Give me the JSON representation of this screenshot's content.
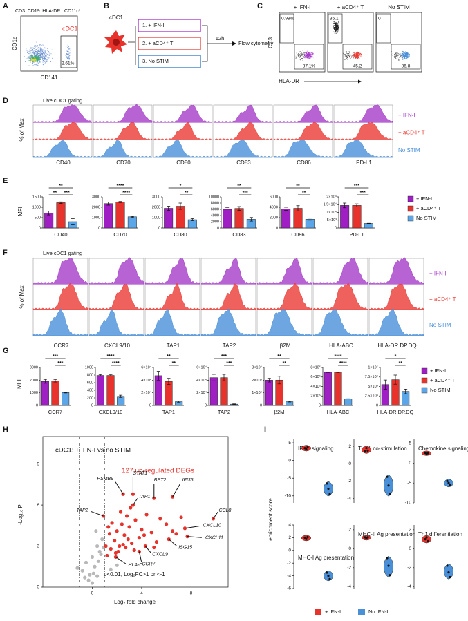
{
  "panel_labels": [
    "A",
    "B",
    "C",
    "D",
    "E",
    "F",
    "G",
    "H",
    "I"
  ],
  "a": {
    "title": "CD3⁻CD19⁻HLA-DR⁺ CD11c⁺",
    "gate": "cDC1",
    "percent": "2.61%",
    "y_label": "CD1c",
    "x_label": "CD141"
  },
  "b": {
    "cell": "cDC1",
    "conditions": [
      "1. + IFN-I",
      "2. + aCD4⁺ T",
      "3. No STIM"
    ],
    "time": "12h",
    "readout": "Flow cytometry"
  },
  "c": {
    "y_label": "CD3",
    "x_label": "HLA-DR",
    "plots": [
      {
        "title": "+ IFN-I",
        "upper": "0.98%",
        "lower": "87.1%"
      },
      {
        "title": "+ aCD4⁺ T",
        "upper": "35.1",
        "lower": "45.2"
      },
      {
        "title": "No STIM",
        "upper": "0",
        "lower": "86.8"
      }
    ]
  },
  "d": {
    "title": "Live cDC1 gating",
    "y_label": "% of Max",
    "markers": [
      "CD40",
      "CD70",
      "CD80",
      "CD83",
      "CD86",
      "PD-L1"
    ],
    "legend": [
      {
        "name": "+ IFN-I",
        "color": "#a53cc8"
      },
      {
        "name": "+ aCD4⁺ T",
        "color": "#ea3a34"
      },
      {
        "name": "No STIM",
        "color": "#4a90d9"
      }
    ]
  },
  "e": {
    "y_label": "MFI",
    "legend": [
      {
        "name": "+ IFN-I",
        "color": "#a01fc4"
      },
      {
        "name": "+ aCD4⁺ T",
        "color": "#e8322c"
      },
      {
        "name": "No STIM",
        "color": "#5aa6e8"
      }
    ],
    "charts": [
      {
        "category": "CD40",
        "ylim": [
          0,
          1500
        ],
        "yticks": [
          0,
          500,
          1000,
          1500
        ],
        "values": [
          720,
          1220,
          300
        ],
        "errors": [
          90,
          40,
          150
        ],
        "sig_1_2": "**",
        "sig_2_3": "***",
        "sig_1_3": "**"
      },
      {
        "category": "CD70",
        "ylim": [
          0,
          3000
        ],
        "yticks": [
          0,
          1000,
          2000,
          3000
        ],
        "values": [
          2350,
          2500,
          1080
        ],
        "errors": [
          150,
          50,
          50
        ],
        "sig_2_3": "****",
        "sig_1_3": "****"
      },
      {
        "category": "CD80",
        "ylim": [
          0,
          3000
        ],
        "yticks": [
          0,
          1000,
          2000,
          3000
        ],
        "values": [
          1900,
          2100,
          800
        ],
        "errors": [
          200,
          300,
          100
        ],
        "sig_2_3": "**",
        "sig_1_3": "*"
      },
      {
        "category": "CD83",
        "ylim": [
          0,
          10000
        ],
        "yticks": [
          0,
          2000,
          4000,
          6000,
          8000,
          10000
        ],
        "values": [
          6000,
          6300,
          2800
        ],
        "errors": [
          600,
          600,
          600
        ],
        "sig_2_3": "***",
        "sig_1_3": "**"
      },
      {
        "category": "CD86",
        "ylim": [
          0,
          6000
        ],
        "yticks": [
          0,
          2000,
          4000,
          6000
        ],
        "values": [
          3700,
          3800,
          1700
        ],
        "errors": [
          300,
          500,
          200
        ],
        "sig_2_3": "**",
        "sig_1_3": "**"
      },
      {
        "category": "PD-L1",
        "ylim": [
          0,
          20000
        ],
        "yticks": [
          0,
          {
            "value": 5000,
            "label": "5×10³"
          },
          {
            "value": 10000,
            "label": "1×10⁴"
          },
          {
            "value": 15000,
            "label": "1.5×10⁴"
          },
          {
            "value": 20000,
            "label": "2×10⁴"
          }
        ],
        "values": [
          14500,
          14500,
          2900
        ],
        "errors": [
          1500,
          1000,
          100
        ],
        "sig_2_3": "***",
        "sig_1_3": "***"
      }
    ]
  },
  "f": {
    "title": "Live cDC1 gating",
    "y_label": "% of Max",
    "markers": [
      "CCR7",
      "CXCL9/10",
      "TAP1",
      "TAP2",
      "β2M",
      "HLA-ABC",
      "HLA-DR.DP.DQ"
    ],
    "legend": [
      {
        "name": "+ IFN-I",
        "color": "#a53cc8"
      },
      {
        "name": "+ aCD4⁺ T",
        "color": "#ea3a34"
      },
      {
        "name": "No STIM",
        "color": "#4a90d9"
      }
    ]
  },
  "g": {
    "y_label": "MFI",
    "legend": [
      {
        "name": "+ IFN-I",
        "color": "#a01fc4"
      },
      {
        "name": "+ aCD4⁺ T",
        "color": "#e8322c"
      },
      {
        "name": "No STIM",
        "color": "#5aa6e8"
      }
    ],
    "charts": [
      {
        "category": "CCR7",
        "ylim": [
          0,
          3000
        ],
        "yticks": [
          0,
          1000,
          2000,
          3000
        ],
        "values": [
          1900,
          1950,
          1020
        ],
        "errors": [
          150,
          100,
          30
        ],
        "sig_2_3": "***",
        "sig_1_3": "***"
      },
      {
        "category": "CXCL9/10",
        "ylim": [
          0,
          1000
        ],
        "yticks": [
          0,
          200,
          400,
          600,
          800,
          1000
        ],
        "values": [
          790,
          790,
          240
        ],
        "errors": [
          20,
          20,
          30
        ],
        "sig_2_3": "****",
        "sig_1_3": "****"
      },
      {
        "category": "TAP1",
        "ylim": [
          0,
          60000
        ],
        "yticks": [
          0,
          {
            "value": 20000,
            "label": "2×10⁴"
          },
          {
            "value": 40000,
            "label": "4×10⁴"
          },
          {
            "value": 60000,
            "label": "6×10⁴"
          }
        ],
        "values": [
          47000,
          38000,
          6000
        ],
        "errors": [
          7000,
          5000,
          1000
        ],
        "sig_2_3": "**",
        "sig_1_3": "**"
      },
      {
        "category": "TAP2",
        "ylim": [
          0,
          60000
        ],
        "yticks": [
          0,
          {
            "value": 20000,
            "label": "2×10⁴"
          },
          {
            "value": 40000,
            "label": "4×10⁴"
          },
          {
            "value": 60000,
            "label": "6×10⁴"
          }
        ],
        "values": [
          44000,
          44000,
          2000
        ],
        "errors": [
          5000,
          5000,
          500
        ],
        "sig_2_3": "***",
        "sig_1_3": "***"
      },
      {
        "category": "β2M",
        "ylim": [
          0,
          30000
        ],
        "yticks": [
          0,
          {
            "value": 10000,
            "label": "1×10⁴"
          },
          {
            "value": 20000,
            "label": "2×10⁴"
          },
          {
            "value": 30000,
            "label": "3×10⁴"
          }
        ],
        "values": [
          20000,
          20000,
          3000
        ],
        "errors": [
          1500,
          3000,
          300
        ],
        "sig_2_3": "**",
        "sig_1_3": "**"
      },
      {
        "category": "HLA-ABC",
        "ylim": [
          0,
          800000
        ],
        "yticks": [
          0,
          {
            "value": 200000,
            "label": "2×10⁵"
          },
          {
            "value": 400000,
            "label": "4×10⁵"
          },
          {
            "value": 600000,
            "label": "6×10⁵"
          },
          {
            "value": 800000,
            "label": "8×10⁵"
          }
        ],
        "values": [
          700000,
          700000,
          140000
        ],
        "errors": [
          5000,
          8000,
          3000
        ],
        "sig_2_3": "****",
        "sig_1_3": "****"
      },
      {
        "category": "HLA-DR.DP.DQ",
        "ylim": [
          0,
          100000
        ],
        "yticks": [
          0,
          {
            "value": 25000,
            "label": "2.5×10⁴"
          },
          {
            "value": 50000,
            "label": "5×10⁴"
          },
          {
            "value": 75000,
            "label": "7.5×10⁴"
          },
          {
            "value": 100000,
            "label": "1×10⁵"
          }
        ],
        "values": [
          55000,
          68000,
          37000
        ],
        "errors": [
          12000,
          12000,
          6000
        ],
        "sig_2_3": "**",
        "sig_1_3": "*"
      }
    ]
  },
  "h": {
    "title": "cDC1: + IFN-I vs no STIM",
    "deg_label": "127 up-regulated DEGs",
    "x_label": "Log₂ fold change",
    "y_label": "-Log₁₀ P",
    "note": "p<0.01, Log₂FC>1 or <-1",
    "xlim": [
      -4,
      11
    ],
    "xticks": [
      0,
      4,
      8
    ],
    "ylim": [
      0,
      11
    ],
    "yticks": [
      0,
      3,
      6,
      9
    ],
    "fc_cutoffs": [
      -1,
      1
    ],
    "p_cutoff": 2,
    "up_color": "#e8322c",
    "other_color": "#b8b8b8",
    "up_x": [
      1.2,
      1.5,
      1.8,
      2.0,
      2.2,
      2.4,
      2.6,
      2.8,
      3.0,
      3.2,
      1.4,
      1.9,
      2.3,
      2.7,
      3.5,
      3.8,
      4.0,
      4.4,
      4.8,
      5.2,
      5.5,
      6.0,
      6.8,
      7.2,
      1.1,
      1.6,
      2.1,
      2.9,
      3.4,
      4.2,
      5.0,
      1.3,
      2.5,
      3.1,
      6.5
    ],
    "up_y": [
      2.3,
      2.8,
      3.4,
      4.1,
      3.0,
      4.6,
      3.8,
      5.2,
      4.4,
      3.2,
      3.9,
      2.5,
      5.5,
      2.9,
      4.9,
      3.6,
      4.2,
      5.3,
      4.0,
      3.3,
      5.0,
      4.6,
      3.9,
      5.1,
      3.0,
      4.7,
      2.6,
      3.5,
      2.7,
      3.8,
      2.9,
      4.4,
      3.1,
      5.8,
      4.1
    ],
    "other_x": [
      -0.8,
      -0.5,
      -0.3,
      0,
      0.2,
      0.4,
      0.6,
      0.8,
      -0.2,
      0.1,
      0.5,
      0.9,
      -0.6,
      0.3,
      0.7,
      1.5,
      2.0,
      -1.2,
      0.0,
      0.4
    ],
    "other_y": [
      1.2,
      1.8,
      0.5,
      2.2,
      1.5,
      3.0,
      2.6,
      3.5,
      0.9,
      1.0,
      1.9,
      2.9,
      0.7,
      4.1,
      2.4,
      1.3,
      1.6,
      1.4,
      0.3,
      0.8
    ],
    "genes": [
      {
        "name": "TAP2",
        "x": 0.9,
        "y": 5.2
      },
      {
        "name": "PSMB9",
        "x": 2.5,
        "y": 6.8
      },
      {
        "name": "STAT1",
        "x": 3.3,
        "y": 6.8
      },
      {
        "name": "TAP1",
        "x": 3.3,
        "y": 6.0
      },
      {
        "name": "BST2",
        "x": 5.0,
        "y": 6.5
      },
      {
        "name": "IFI35",
        "x": 6.5,
        "y": 6.6
      },
      {
        "name": "CCL8",
        "x": 9.8,
        "y": 5.0
      },
      {
        "name": "CXCL10",
        "x": 7.5,
        "y": 4.3
      },
      {
        "name": "CXCL11",
        "x": 7.7,
        "y": 3.7
      },
      {
        "name": "ISG15",
        "x": 6.2,
        "y": 3.5
      },
      {
        "name": "CXCL9",
        "x": 4.3,
        "y": 3.0
      },
      {
        "name": "CCR7",
        "x": 3.8,
        "y": 2.6
      },
      {
        "name": "HLA-C",
        "x": 1.9,
        "y": 2.2
      }
    ]
  },
  "i": {
    "y_label": "enrichment score",
    "legend": [
      {
        "name": "+ IFN-I",
        "color": "#e8322c"
      },
      {
        "name": "No IFN-I",
        "color": "#4a90d9"
      }
    ],
    "panels": [
      {
        "title": "IFN-I signaling",
        "ylim": [
          -12,
          6
        ],
        "yticks": [
          5,
          0,
          -5,
          -10
        ],
        "ifn": [
          3.5,
          3.2,
          3.8
        ],
        "no_ifn": [
          -6.5,
          -8,
          -9.5
        ]
      },
      {
        "title": "T-cell co-stimulation",
        "ylim": [
          -4.5,
          2.8
        ],
        "yticks": [
          2,
          0,
          -2,
          -4
        ],
        "ifn": [
          1.4,
          1.8,
          1.5
        ],
        "no_ifn": [
          -1.5,
          -2.5,
          -3.5
        ]
      },
      {
        "title": "Chemokine signaling",
        "ylim": [
          -10,
          6
        ],
        "yticks": [
          5,
          0,
          -5,
          -10
        ],
        "ifn": [
          2.6,
          2.4,
          2.5
        ],
        "no_ifn": [
          -4.5,
          -5,
          -5.5
        ]
      },
      {
        "title": "MHC-I Ag presentation",
        "ylim": [
          -6,
          4
        ],
        "yticks": [
          4,
          2,
          0,
          -2,
          -4,
          -6
        ],
        "ifn": [
          2.0,
          1.8,
          2.1
        ],
        "no_ifn": [
          -3.5,
          -4,
          -4.5
        ]
      },
      {
        "title": "MHC-II Ag presentation",
        "ylim": [
          -4.2,
          2.5
        ],
        "yticks": [
          2,
          0,
          -2,
          -4
        ],
        "ifn": [
          1.2,
          1.1,
          1.2
        ],
        "no_ifn": [
          -1,
          -1.8,
          -2.8
        ]
      },
      {
        "title": "Th1 differentiation",
        "ylim": [
          -4.2,
          2.5
        ],
        "yticks": [
          2,
          0,
          -2,
          -4
        ],
        "ifn": [
          1.0,
          1.2,
          0.8
        ],
        "no_ifn": [
          -1.8,
          -2.5,
          -3
        ]
      }
    ]
  }
}
